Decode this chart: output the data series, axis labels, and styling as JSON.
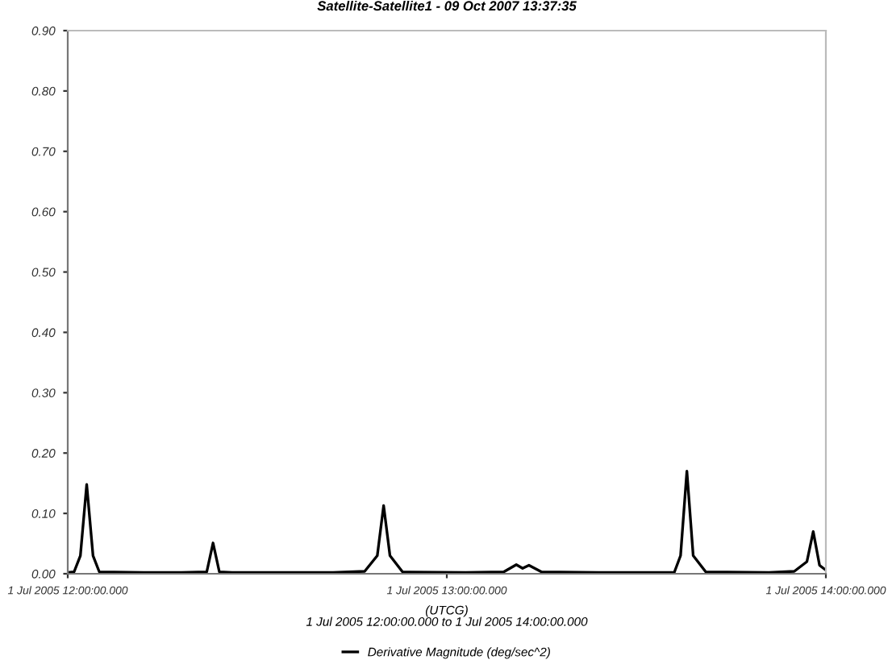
{
  "chart_data": {
    "type": "line",
    "title": "Satellite-Satellite1 - 09 Oct 2007 13:37:35",
    "xlabel": "(UTCG)\n1 Jul 2005 12:00:00.000 to 1 Jul 2005 14:00:00.000",
    "xlim": [
      "2005-07-01T12:00",
      "2005-07-01T14:00"
    ],
    "xticks": [
      {
        "value": "2005-07-01T12:00",
        "label": "1 Jul 2005 12:00:00.000"
      },
      {
        "value": "2005-07-01T13:00",
        "label": "1 Jul 2005 13:00:00.000"
      },
      {
        "value": "2005-07-01T14:00",
        "label": "1 Jul 2005 14:00:00.000"
      }
    ],
    "ylim": [
      0,
      0.9
    ],
    "yticks": [
      {
        "value": 0,
        "label": "0.00"
      },
      {
        "value": 0.1,
        "label": "0.10"
      },
      {
        "value": 0.2,
        "label": "0.20"
      },
      {
        "value": 0.3,
        "label": "0.30"
      },
      {
        "value": 0.4,
        "label": "0.40"
      },
      {
        "value": 0.5,
        "label": "0.50"
      },
      {
        "value": 0.6,
        "label": "0.60"
      },
      {
        "value": 0.7,
        "label": "0.70"
      },
      {
        "value": 0.8,
        "label": "0.80"
      },
      {
        "value": 0.9,
        "label": "0.90"
      }
    ],
    "grid": false,
    "legend": "bottom",
    "marker": "none",
    "line_style": "solid",
    "series": [
      {
        "name": "Derivative Magnitude (deg/sec^2)",
        "color": "#000000",
        "x": [
          "2005-07-01T12:00",
          "2005-07-01T12:01",
          "2005-07-01T12:02",
          "2005-07-01T12:03",
          "2005-07-01T12:04",
          "2005-07-01T12:05",
          "2005-07-01T12:12",
          "2005-07-01T12:18",
          "2005-07-01T12:22",
          "2005-07-01T12:23",
          "2005-07-01T12:24",
          "2005-07-01T12:26",
          "2005-07-01T12:42",
          "2005-07-01T12:47",
          "2005-07-01T12:49",
          "2005-07-01T12:50",
          "2005-07-01T12:51",
          "2005-07-01T12:53",
          "2005-07-01T13:03",
          "2005-07-01T13:09",
          "2005-07-01T13:11",
          "2005-07-01T13:12",
          "2005-07-01T13:13",
          "2005-07-01T13:15",
          "2005-07-01T13:24",
          "2005-07-01T13:36",
          "2005-07-01T13:37",
          "2005-07-01T13:38",
          "2005-07-01T13:39",
          "2005-07-01T13:41",
          "2005-07-01T13:51",
          "2005-07-01T13:55",
          "2005-07-01T13:57",
          "2005-07-01T13:58",
          "2005-07-01T13:59",
          "2005-07-01T14:00"
        ],
        "values": [
          0.002,
          0.003,
          0.03,
          0.148,
          0.03,
          0.003,
          0.002,
          0.002,
          0.003,
          0.051,
          0.003,
          0.002,
          0.002,
          0.004,
          0.03,
          0.113,
          0.03,
          0.003,
          0.002,
          0.003,
          0.015,
          0.009,
          0.014,
          0.003,
          0.002,
          0.002,
          0.03,
          0.17,
          0.03,
          0.003,
          0.002,
          0.004,
          0.02,
          0.07,
          0.014,
          0.006
        ]
      }
    ]
  }
}
